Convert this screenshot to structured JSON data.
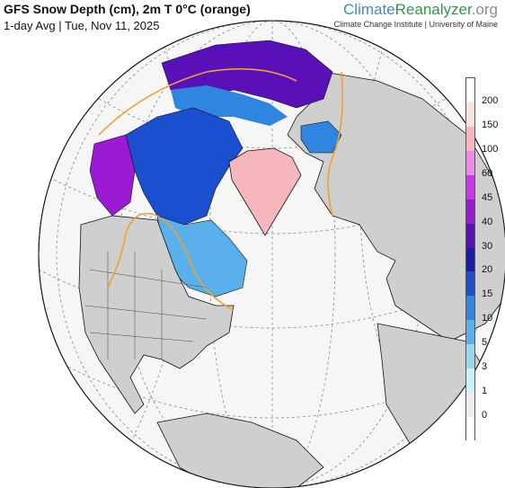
{
  "header": {
    "title": "GFS Snow Depth (cm), 2m T 0°C (orange)",
    "subtitle": "1-day Avg | Tue, Nov 11, 2025"
  },
  "brand": {
    "part1": "Climate",
    "part2": "Reanalyzer",
    "part3": ".org",
    "credit": "Climate Change Institute | University of Maine"
  },
  "legend": {
    "labels": [
      "200",
      "150",
      "100",
      "60",
      "45",
      "40",
      "30",
      "20",
      "15",
      "10",
      "5",
      "3",
      "1",
      "0"
    ],
    "colors": [
      "#ffffff",
      "#fbe2e2",
      "#f5b7bb",
      "#ee88ee",
      "#cc33ee",
      "#9a1ad6",
      "#5a10b8",
      "#1a1ab0",
      "#1c4fd0",
      "#2f86e0",
      "#5ab0ea",
      "#9ad7f2",
      "#c8f3f8",
      "#eeeeee",
      "#ffffff"
    ]
  },
  "map_colors": {
    "ocean": "#f6f6f6",
    "land": "#cfcfcf",
    "coast": "#111111",
    "freezing_line": "#f0a030",
    "graticule": "#888888"
  }
}
